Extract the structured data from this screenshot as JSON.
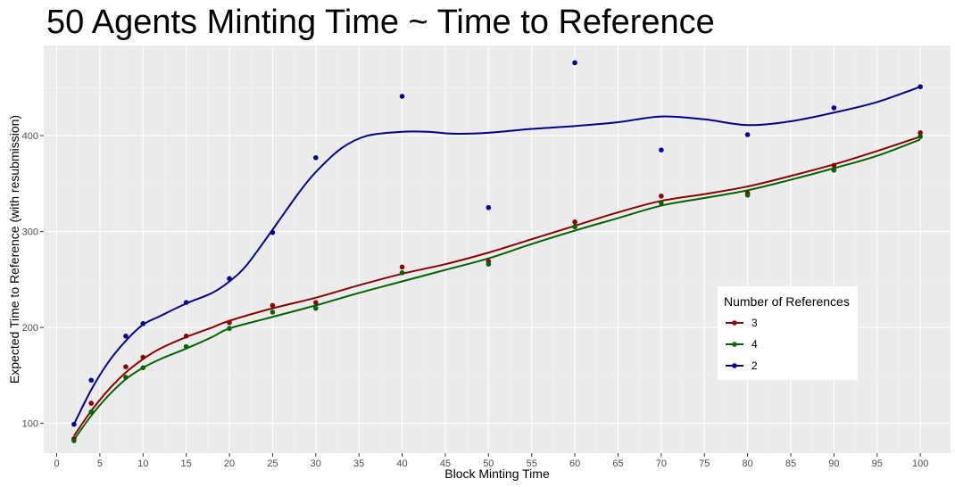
{
  "chart_data": {
    "type": "scatter",
    "title": "50 Agents Minting Time ~ Time to Reference",
    "xlabel": "Block Minting Time",
    "ylabel": "Expected Time to Reference (with resubmission)",
    "xlim": [
      -1.5,
      103.5
    ],
    "ylim": [
      69,
      494
    ],
    "xticks": [
      0,
      5,
      10,
      15,
      20,
      25,
      30,
      35,
      40,
      45,
      50,
      55,
      60,
      65,
      70,
      75,
      80,
      85,
      90,
      95,
      100
    ],
    "yticks": [
      100,
      200,
      300,
      400
    ],
    "grid": true,
    "legend": {
      "title": "Number of References",
      "position": "right-inside"
    },
    "series": [
      {
        "name": "3",
        "color": "#8b0000",
        "points": [
          [
            2,
            84
          ],
          [
            4,
            121
          ],
          [
            8,
            159
          ],
          [
            10,
            169
          ],
          [
            15,
            191
          ],
          [
            20,
            205
          ],
          [
            25,
            223
          ],
          [
            30,
            226
          ],
          [
            40,
            263
          ],
          [
            50,
            269
          ],
          [
            60,
            310
          ],
          [
            70,
            337
          ],
          [
            80,
            340
          ],
          [
            90,
            369
          ],
          [
            100,
            403
          ]
        ],
        "smooth": [
          [
            2,
            87
          ],
          [
            4,
            113
          ],
          [
            6,
            135
          ],
          [
            8,
            153
          ],
          [
            10,
            167
          ],
          [
            12,
            178
          ],
          [
            15,
            190
          ],
          [
            18,
            200
          ],
          [
            20,
            207
          ],
          [
            25,
            220
          ],
          [
            30,
            231
          ],
          [
            35,
            244
          ],
          [
            40,
            256
          ],
          [
            45,
            266
          ],
          [
            50,
            278
          ],
          [
            55,
            292
          ],
          [
            60,
            306
          ],
          [
            65,
            320
          ],
          [
            70,
            332
          ],
          [
            75,
            339
          ],
          [
            80,
            347
          ],
          [
            85,
            358
          ],
          [
            90,
            370
          ],
          [
            95,
            384
          ],
          [
            100,
            399
          ]
        ]
      },
      {
        "name": "4",
        "color": "#006400",
        "points": [
          [
            2,
            82
          ],
          [
            4,
            112
          ],
          [
            8,
            148
          ],
          [
            10,
            158
          ],
          [
            15,
            180
          ],
          [
            20,
            199
          ],
          [
            25,
            216
          ],
          [
            30,
            220
          ],
          [
            40,
            257
          ],
          [
            50,
            266
          ],
          [
            60,
            305
          ],
          [
            70,
            330
          ],
          [
            80,
            338
          ],
          [
            90,
            364
          ],
          [
            100,
            399
          ]
        ],
        "smooth": [
          [
            2,
            83
          ],
          [
            4,
            108
          ],
          [
            6,
            129
          ],
          [
            8,
            146
          ],
          [
            10,
            158
          ],
          [
            12,
            167
          ],
          [
            15,
            178
          ],
          [
            18,
            190
          ],
          [
            20,
            199
          ],
          [
            25,
            211
          ],
          [
            30,
            223
          ],
          [
            35,
            236
          ],
          [
            40,
            248
          ],
          [
            45,
            260
          ],
          [
            50,
            272
          ],
          [
            55,
            287
          ],
          [
            60,
            301
          ],
          [
            65,
            314
          ],
          [
            70,
            327
          ],
          [
            75,
            335
          ],
          [
            80,
            343
          ],
          [
            85,
            354
          ],
          [
            90,
            366
          ],
          [
            95,
            379
          ],
          [
            100,
            396
          ]
        ]
      },
      {
        "name": "2",
        "color": "#00008b",
        "points": [
          [
            2,
            99
          ],
          [
            4,
            145
          ],
          [
            8,
            191
          ],
          [
            10,
            204
          ],
          [
            15,
            226
          ],
          [
            20,
            251
          ],
          [
            25,
            299
          ],
          [
            30,
            377
          ],
          [
            40,
            441
          ],
          [
            50,
            325
          ],
          [
            60,
            476
          ],
          [
            70,
            385
          ],
          [
            80,
            401
          ],
          [
            90,
            429
          ],
          [
            100,
            451
          ]
        ],
        "smooth": [
          [
            2,
            99
          ],
          [
            4,
            135
          ],
          [
            6,
            164
          ],
          [
            8,
            186
          ],
          [
            10,
            203
          ],
          [
            12,
            212
          ],
          [
            15,
            225
          ],
          [
            18,
            236
          ],
          [
            20,
            248
          ],
          [
            22,
            265
          ],
          [
            25,
            302
          ],
          [
            28,
            340
          ],
          [
            30,
            362
          ],
          [
            33,
            387
          ],
          [
            36,
            400
          ],
          [
            40,
            404
          ],
          [
            43,
            404
          ],
          [
            46,
            402
          ],
          [
            50,
            403
          ],
          [
            55,
            407
          ],
          [
            60,
            410
          ],
          [
            65,
            414
          ],
          [
            70,
            420
          ],
          [
            75,
            417
          ],
          [
            80,
            411
          ],
          [
            85,
            415
          ],
          [
            90,
            424
          ],
          [
            95,
            435
          ],
          [
            100,
            451
          ]
        ]
      }
    ]
  }
}
